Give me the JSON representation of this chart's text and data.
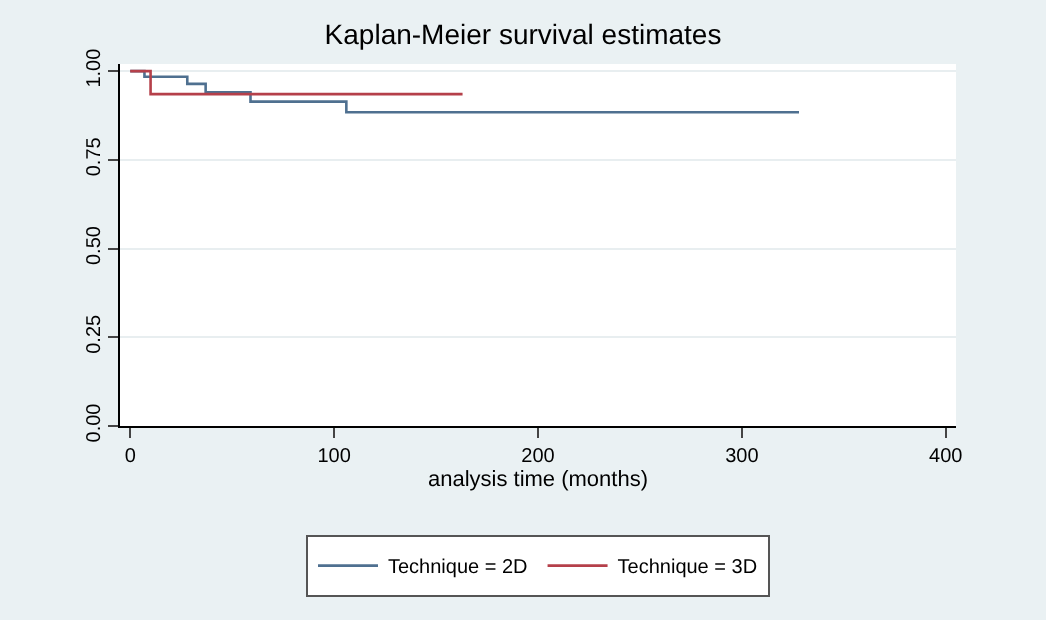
{
  "chart_data": {
    "type": "step",
    "title": "Kaplan-Meier survival estimates",
    "xlabel": "analysis time (months)",
    "xlim": [
      -5,
      405
    ],
    "xticks": [
      0,
      100,
      200,
      300,
      400
    ],
    "ylim": [
      0,
      1.02
    ],
    "yticks": [
      {
        "value": 0,
        "label": "0.00"
      },
      {
        "value": 0.25,
        "label": "0.25"
      },
      {
        "value": 0.5,
        "label": "0.50"
      },
      {
        "value": 0.75,
        "label": "0.75"
      },
      {
        "value": 1,
        "label": "1.00"
      }
    ],
    "grid": "y",
    "legend": "bottom",
    "series": [
      {
        "name": "Technique = 2D",
        "color": "#4f7090",
        "x": [
          0,
          7,
          28,
          37,
          59,
          106,
          328
        ],
        "values": [
          1.0,
          0.984,
          0.964,
          0.94,
          0.914,
          0.884,
          0.884
        ]
      },
      {
        "name": "Technique = 3D",
        "color": "#b5404a",
        "x": [
          0,
          10,
          163
        ],
        "values": [
          1.0,
          0.935,
          0.935
        ]
      }
    ]
  }
}
